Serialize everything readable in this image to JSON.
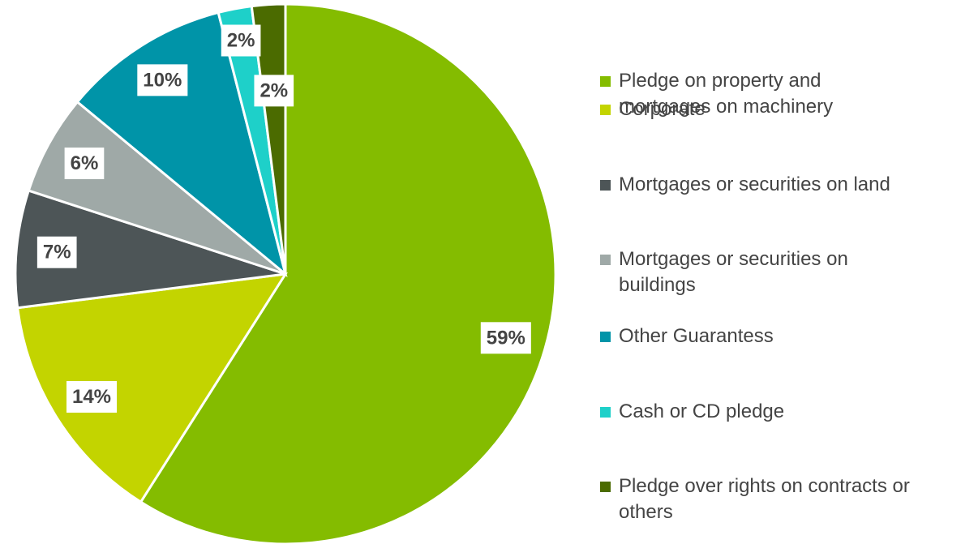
{
  "chart_data": {
    "type": "pie",
    "categories": [
      "Pledge on property and mortgages on machinery",
      "Corporate",
      "Mortgages or securities on land",
      "Mortgages or securities on buildings",
      "Other Guarantess",
      "Cash or CD pledge",
      "Pledge over rights on contracts or others"
    ],
    "values": [
      59,
      14,
      7,
      6,
      10,
      2,
      2
    ],
    "value_labels": [
      "59%",
      "14%",
      "7%",
      "6%",
      "10%",
      "2%",
      "2%"
    ],
    "colors": [
      "#84bc00",
      "#c3d400",
      "#4d5557",
      "#9fa9a7",
      "#0094a8",
      "#1ed0c9",
      "#4b6b00"
    ],
    "legend": "right"
  }
}
